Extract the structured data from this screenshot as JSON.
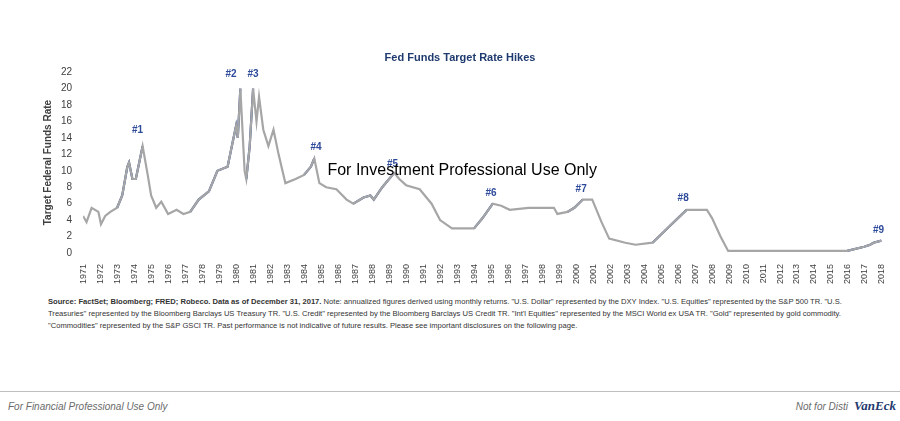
{
  "chart_data": {
    "type": "line",
    "title": "Fed Funds Target Rate Hikes",
    "y_label": "Target Federal Funds Rate",
    "x": [
      1971.0,
      1971.2,
      1971.5,
      1971.9,
      1972.05,
      1972.3,
      1972.6,
      1973.0,
      1973.3,
      1973.6,
      1973.7,
      1973.9,
      1974.1,
      1974.5,
      1974.8,
      1975.0,
      1975.3,
      1975.6,
      1976.0,
      1976.5,
      1976.9,
      1977.3,
      1977.8,
      1978.4,
      1978.9,
      1979.5,
      1979.8,
      1980.0,
      1980.1,
      1980.25,
      1980.5,
      1980.6,
      1980.8,
      1981.0,
      1981.2,
      1981.35,
      1981.6,
      1981.9,
      1982.2,
      1982.5,
      1982.9,
      1983.5,
      1984.0,
      1984.4,
      1984.6,
      1984.9,
      1985.3,
      1985.9,
      1986.5,
      1986.9,
      1987.5,
      1987.9,
      1988.1,
      1988.6,
      1989.3,
      1989.6,
      1990.0,
      1990.8,
      1991.5,
      1992.0,
      1992.7,
      1994.0,
      1994.5,
      1995.1,
      1995.6,
      1996.1,
      1997.2,
      1998.7,
      1998.9,
      1999.5,
      1999.9,
      2000.4,
      2000.95,
      2001.5,
      2001.95,
      2002.9,
      2003.5,
      2004.5,
      2005.5,
      2006.5,
      2007.7,
      2008.0,
      2008.5,
      2008.95,
      2015.95,
      2016.95,
      2017.3,
      2017.5,
      2017.96
    ],
    "series": [
      {
        "color": "#a6a6a6",
        "line_style": "solid",
        "values": [
          4.5,
          3.75,
          5.5,
          5.0,
          3.5,
          4.5,
          5.0,
          5.5,
          7.0,
          10.5,
          11.0,
          9.0,
          9.0,
          13.0,
          9.5,
          7.0,
          5.5,
          6.25,
          4.75,
          5.25,
          4.75,
          5.0,
          6.5,
          7.5,
          10.0,
          10.5,
          13.5,
          15.5,
          14.0,
          20.0,
          10.0,
          9.0,
          13.0,
          20.0,
          16.0,
          19.0,
          15.0,
          13.0,
          15.0,
          12.0,
          8.5,
          9.0,
          9.5,
          10.5,
          11.5,
          8.5,
          8.0,
          7.75,
          6.5,
          6.0,
          6.75,
          7.0,
          6.5,
          8.0,
          9.75,
          9.0,
          8.25,
          7.75,
          6.0,
          4.0,
          3.0,
          3.0,
          4.25,
          6.0,
          5.75,
          5.25,
          5.5,
          5.5,
          4.75,
          5.0,
          5.5,
          6.5,
          6.5,
          3.75,
          1.75,
          1.25,
          1.0,
          1.25,
          3.25,
          5.25,
          5.25,
          4.25,
          2.0,
          0.25,
          0.25,
          0.75,
          1.0,
          1.25,
          1.5
        ]
      },
      {
        "color": "#1f3f8f",
        "line_style": "solid",
        "values": [
          null,
          null,
          null,
          null,
          null,
          null,
          null,
          5.5,
          7.0,
          10.5,
          11.0,
          9.0,
          9.0,
          13.0,
          null,
          null,
          null,
          null,
          null,
          null,
          null,
          5.0,
          6.5,
          7.5,
          10.0,
          10.5,
          13.5,
          15.5,
          14.0,
          20.0,
          null,
          9.0,
          13.0,
          20.0,
          null,
          null,
          null,
          null,
          null,
          null,
          null,
          null,
          9.5,
          10.5,
          11.5,
          null,
          null,
          null,
          null,
          6.0,
          6.75,
          7.0,
          6.5,
          8.0,
          9.75,
          null,
          null,
          null,
          null,
          null,
          null,
          3.0,
          4.25,
          6.0,
          null,
          null,
          null,
          null,
          null,
          5.0,
          5.5,
          6.5,
          null,
          null,
          null,
          null,
          null,
          1.25,
          3.25,
          5.25,
          null,
          null,
          null,
          null,
          0.25,
          0.75,
          1.0,
          1.25,
          1.5
        ]
      }
    ],
    "xlim": [
      1971,
      2018
    ],
    "xticks": [
      1971,
      1972,
      1973,
      1974,
      1975,
      1976,
      1977,
      1978,
      1979,
      1980,
      1981,
      1982,
      1983,
      1984,
      1985,
      1986,
      1987,
      1988,
      1989,
      1990,
      1991,
      1992,
      1993,
      1994,
      1995,
      1996,
      1997,
      1998,
      1999,
      2000,
      2001,
      2002,
      2003,
      2004,
      2005,
      2006,
      2007,
      2008,
      2009,
      2010,
      2011,
      2012,
      2013,
      2014,
      2015,
      2016,
      2017,
      2018
    ],
    "ylim": [
      0,
      22
    ],
    "yticks": [
      0,
      2,
      4,
      6,
      8,
      10,
      12,
      14,
      16,
      18,
      20,
      22
    ],
    "grid": false,
    "annotations": [
      {
        "text": "#1",
        "x": 1974.2,
        "y": 14.3,
        "color": "#2e4b9b"
      },
      {
        "text": "#2",
        "x": 1979.7,
        "y": 21.2,
        "color": "#2e4b9b"
      },
      {
        "text": "#3",
        "x": 1981.0,
        "y": 21.2,
        "color": "#2e4b9b"
      },
      {
        "text": "#4",
        "x": 1984.7,
        "y": 12.2,
        "color": "#2e4b9b"
      },
      {
        "text": "#5",
        "x": 1989.2,
        "y": 10.2,
        "color": "#2e4b9b"
      },
      {
        "text": "#6",
        "x": 1995.0,
        "y": 6.6,
        "color": "#2e4b9b"
      },
      {
        "text": "#7",
        "x": 2000.3,
        "y": 7.1,
        "color": "#2e4b9b"
      },
      {
        "text": "#8",
        "x": 2006.3,
        "y": 6.0,
        "color": "#2e4b9b"
      },
      {
        "text": "#9",
        "x": 2017.8,
        "y": 2.1,
        "color": "#2e4b9b"
      }
    ],
    "watermark": {
      "text": "For Investment Professional Use Only",
      "x": 1993.3,
      "y": 10.0
    },
    "source": "Source: FactSet; Bloomberg; FRED; Robeco. Data as of December 31, 2017.",
    "note": "Note: annualized figures derived using monthly returns. \"U.S. Dollar\" represented by the DXY Index. \"U.S. Equities\" represented by the S&P 500 TR. \"U.S. Treasuries\" represented by the Bloomberg Barclays US Treasury TR. \"U.S. Credit\" represented by the Bloomberg Barclays US Credit TR. \"Int'l Equities\" represented by the MSCI World ex USA TR. \"Gold\" represented by gold commodity. \"Commodities\" represented by the S&P GSCI TR. Past performance is not indicative of future results. Please see important disclosures on the following page.",
    "footer_left": "For Financial Professional Use Only",
    "footer_right": "Not for Disti",
    "logo": "VanEck"
  }
}
